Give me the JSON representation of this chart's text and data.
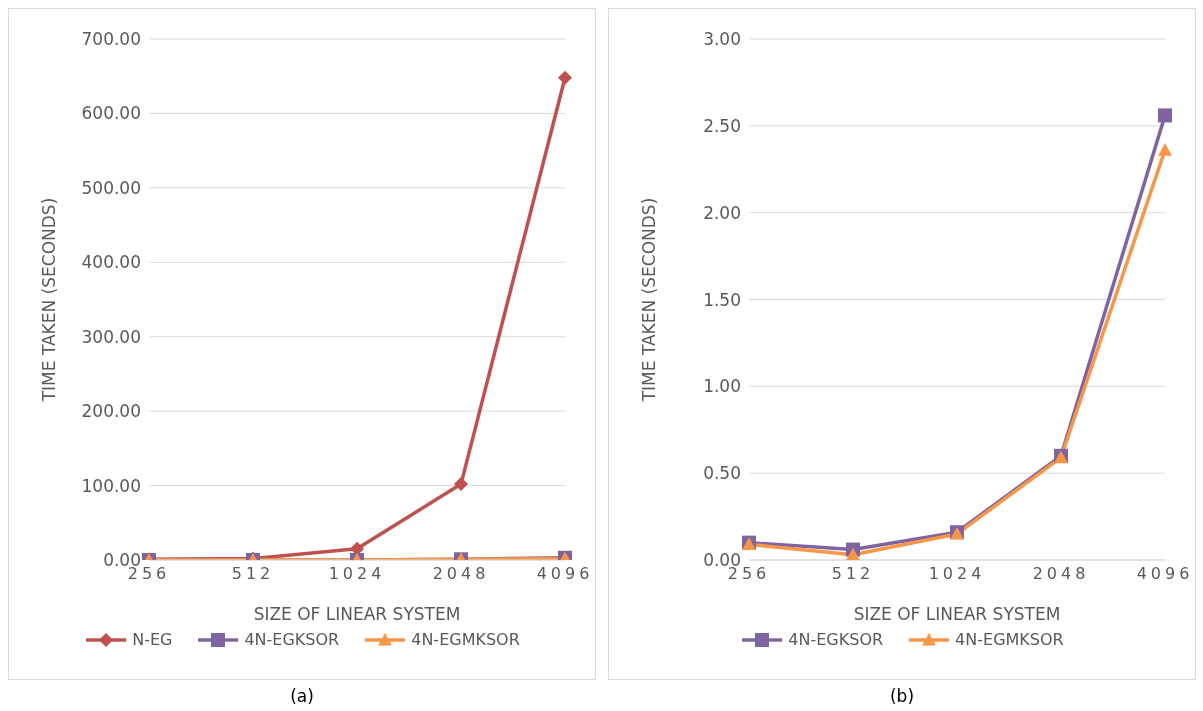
{
  "chart_data": [
    {
      "type": "line",
      "xlabel": "SIZE OF LINEAR SYSTEM",
      "ylabel": "TIME TAKEN (SECONDS)",
      "categories": [
        "256",
        "512",
        "1024",
        "2048",
        "4096"
      ],
      "series": [
        {
          "name": "N-EG",
          "color": "#c0504d",
          "marker": "diamond",
          "values": [
            1,
            2,
            15,
            102,
            648
          ]
        },
        {
          "name": "4N-EGKSOR",
          "color": "#8064a2",
          "marker": "square",
          "values": [
            0,
            0,
            0,
            1,
            3
          ]
        },
        {
          "name": "4N-EGMKSOR",
          "color": "#f79646",
          "marker": "triangle",
          "values": [
            0,
            0,
            0,
            1,
            2
          ]
        }
      ],
      "ylim": [
        0,
        700
      ],
      "yticks": [
        {
          "value": 0,
          "label": "0.00"
        },
        {
          "value": 100,
          "label": "100.00"
        },
        {
          "value": 200,
          "label": "200.00"
        },
        {
          "value": 300,
          "label": "300.00"
        },
        {
          "value": 400,
          "label": "400.00"
        },
        {
          "value": 500,
          "label": "500.00"
        },
        {
          "value": 600,
          "label": "600.00"
        },
        {
          "value": 700,
          "label": "700.00"
        }
      ],
      "grid": "y",
      "legend": "bottom",
      "annotations": [
        "(a)"
      ]
    },
    {
      "type": "line",
      "xlabel": "SIZE OF LINEAR SYSTEM",
      "ylabel": "TIME TAKEN (SECONDS)",
      "categories": [
        "256",
        "512",
        "1024",
        "2048",
        "4096"
      ],
      "series": [
        {
          "name": "4N-EGKSOR",
          "color": "#8064a2",
          "marker": "square",
          "values": [
            0.1,
            0.06,
            0.16,
            0.6,
            2.56
          ]
        },
        {
          "name": "4N-EGMKSOR",
          "color": "#f79646",
          "marker": "triangle",
          "values": [
            0.09,
            0.03,
            0.15,
            0.59,
            2.36
          ]
        }
      ],
      "ylim": [
        0,
        3
      ],
      "yticks": [
        {
          "value": 0,
          "label": "0.00"
        },
        {
          "value": 0.5,
          "label": "0.50"
        },
        {
          "value": 1,
          "label": "1.00"
        },
        {
          "value": 1.5,
          "label": "1.50"
        },
        {
          "value": 2,
          "label": "2.00"
        },
        {
          "value": 2.5,
          "label": "2.50"
        },
        {
          "value": 3,
          "label": "3.00"
        }
      ],
      "grid": "y",
      "legend": "bottom",
      "annotations": [
        "(b)"
      ]
    }
  ]
}
